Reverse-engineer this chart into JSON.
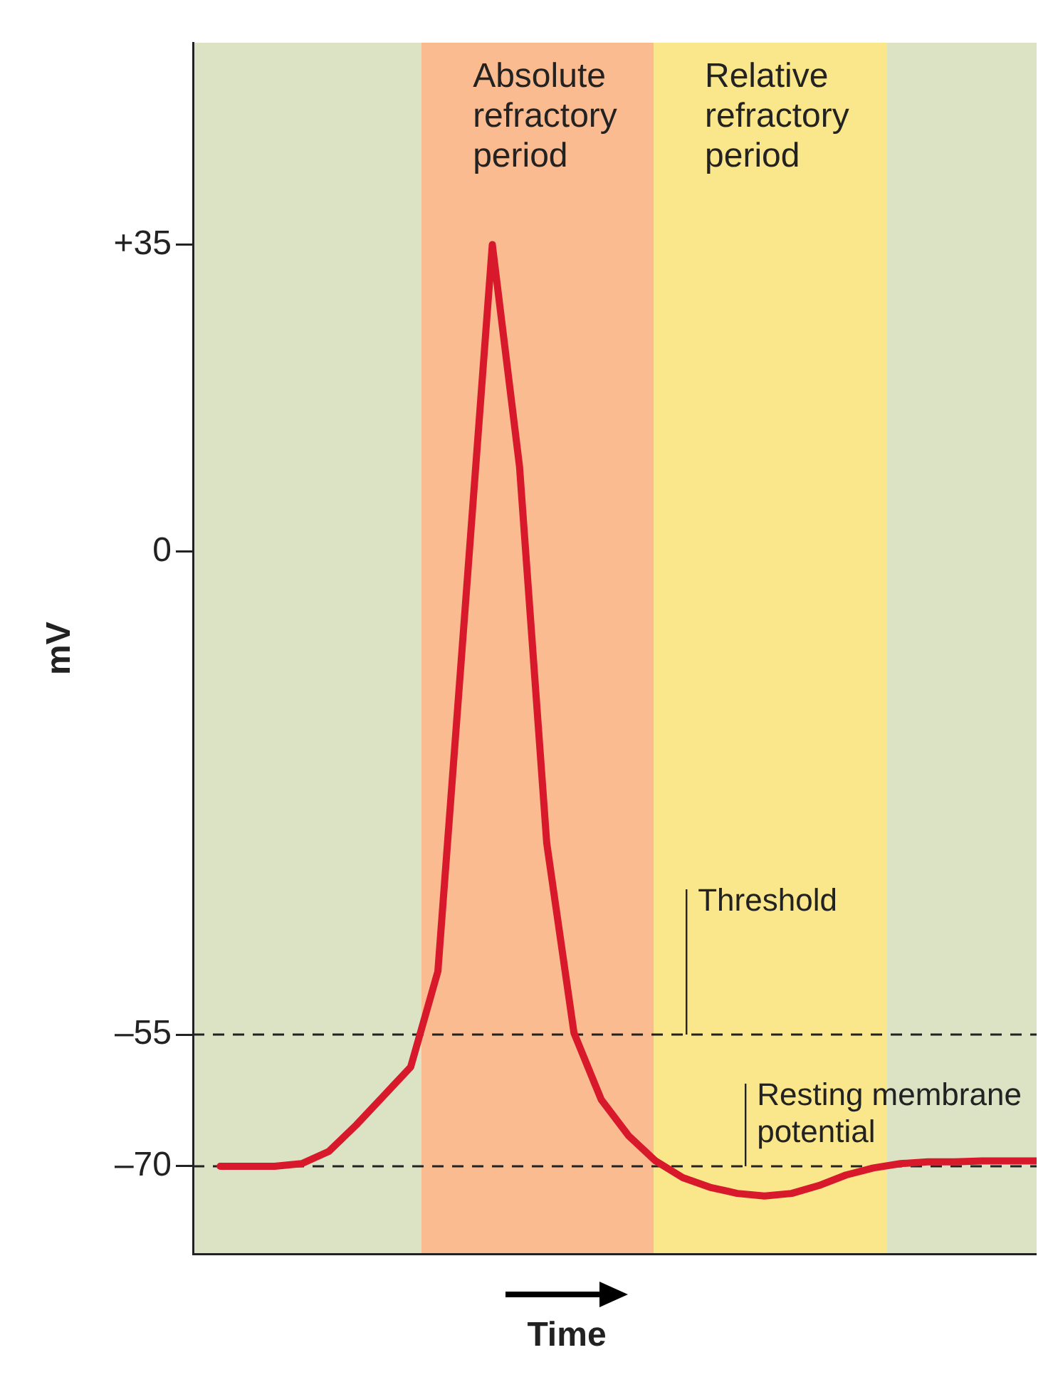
{
  "chart_data": {
    "type": "line",
    "ylabel": "mV",
    "xlabel": "Time",
    "categories": [
      null,
      null,
      null,
      null,
      null,
      null,
      null,
      null,
      null,
      null,
      null,
      null,
      null,
      null,
      null,
      null,
      null,
      null,
      null,
      null,
      null,
      null,
      null,
      null,
      null,
      null,
      null,
      null,
      null,
      null,
      null,
      null
    ],
    "series": [
      {
        "color": "#d7192b",
        "values": [
          null,
          -70,
          -70,
          -70,
          -69.7,
          -68.3,
          -65.3,
          -62,
          -58.7,
          -47.8,
          -6.5,
          35,
          9.7,
          -33.2,
          -54.8,
          -62.4,
          -66.5,
          -69.4,
          -71.3,
          -72.4,
          -73.1,
          -73.4,
          -73.1,
          -72.2,
          -71,
          -70.2,
          -69.7,
          -69.5,
          -69.5,
          -69.4,
          -69.4,
          -69.4
        ]
      }
    ],
    "ylim": [
      -80,
      58
    ],
    "yticks": [
      {
        "value": 35,
        "label": "+35"
      },
      0,
      {
        "value": -55,
        "label": "–55"
      },
      {
        "value": -70,
        "label": "–70"
      }
    ],
    "tick_labels": "y",
    "grid": false,
    "legend": false,
    "marker": "none",
    "line_style": "solid",
    "annotations": [
      "Absolute refractory period",
      "Relative refractory period"
    ],
    "ref_lines": [
      {
        "axis": "y",
        "value": -55,
        "label": "Threshold",
        "line_style": "dashed",
        "color": "#222222"
      },
      {
        "axis": "y",
        "value": -70,
        "label": "Resting membrane potential",
        "line_style": "dashed",
        "color": "#222222"
      }
    ]
  }
}
